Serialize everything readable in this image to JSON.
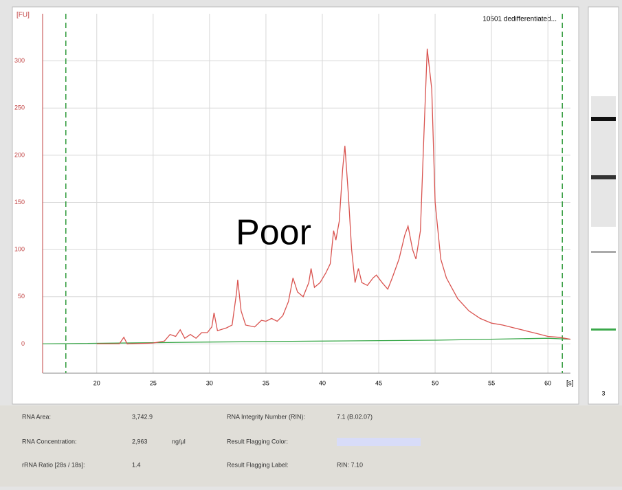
{
  "chart_data": {
    "type": "line",
    "title": "10501 dedifferentiated...",
    "annotation": "Poor",
    "ylabel": "[FU]",
    "xlabel": "[s]",
    "xlim": [
      15.2,
      62
    ],
    "ylim": [
      -31,
      350
    ],
    "xticks": [
      20,
      25,
      30,
      35,
      40,
      45,
      50,
      55,
      60
    ],
    "yticks": [
      0,
      50,
      100,
      150,
      200,
      250,
      300
    ],
    "grid": true,
    "markers": [
      17.26,
      61.28
    ],
    "marker_color": "#2e9a3a",
    "series": [
      {
        "color": "#d9534f",
        "x": [
          20,
          22,
          22.4,
          22.7,
          25,
          26,
          26.5,
          27,
          27.4,
          27.8,
          28.3,
          28.8,
          29.3,
          29.8,
          30.2,
          30.4,
          30.7,
          31.5,
          32,
          32.4,
          32.5,
          32.8,
          33.2,
          34,
          34.6,
          35,
          35.5,
          36,
          36.5,
          37,
          37.4,
          37.8,
          38.3,
          38.8,
          39,
          39.3,
          39.8,
          40.3,
          40.7,
          41,
          41.2,
          41.5,
          41.8,
          42,
          42.3,
          42.6,
          42.9,
          43.2,
          43.5,
          44,
          44.5,
          44.8,
          45.3,
          45.8,
          46.2,
          46.8,
          47.3,
          47.6,
          48,
          48.3,
          48.7,
          49,
          49.3,
          49.7,
          50,
          50.5,
          51,
          52,
          53,
          54,
          55,
          56,
          57,
          58,
          59,
          60,
          61,
          62
        ],
        "values": [
          0,
          0,
          7,
          0,
          1,
          3,
          10,
          8,
          15,
          6,
          10,
          6,
          12,
          12,
          18,
          33,
          14,
          17,
          20,
          55,
          68,
          35,
          20,
          18,
          25,
          24,
          27,
          24,
          30,
          45,
          70,
          55,
          50,
          65,
          80,
          60,
          65,
          75,
          85,
          120,
          110,
          130,
          185,
          210,
          160,
          100,
          65,
          80,
          65,
          62,
          70,
          73,
          65,
          58,
          70,
          90,
          115,
          125,
          100,
          90,
          120,
          220,
          313,
          270,
          150,
          90,
          70,
          48,
          35,
          27,
          22,
          20,
          17,
          14,
          11,
          8,
          7,
          5
        ]
      },
      {
        "color": "#3aa84a",
        "x": [
          15.2,
          30,
          40,
          50,
          60,
          62
        ],
        "values": [
          0,
          2,
          3,
          4,
          6,
          5
        ]
      }
    ]
  },
  "panel": {
    "lane": "3",
    "results": [
      [
        "RNA Area:",
        "3,742.9"
      ],
      [
        "RNA Integrity Number (RIN):",
        "7.1  (B.02.07)"
      ],
      [
        "RNA Concentration:",
        "2,963",
        "ng/µl"
      ],
      [
        "Result Flagging Color:"
      ],
      [
        "rRNA Ratio [28s / 18s]:",
        "1.4"
      ],
      [
        "Result Flagging Label:",
        "RIN: 7.10"
      ]
    ]
  }
}
